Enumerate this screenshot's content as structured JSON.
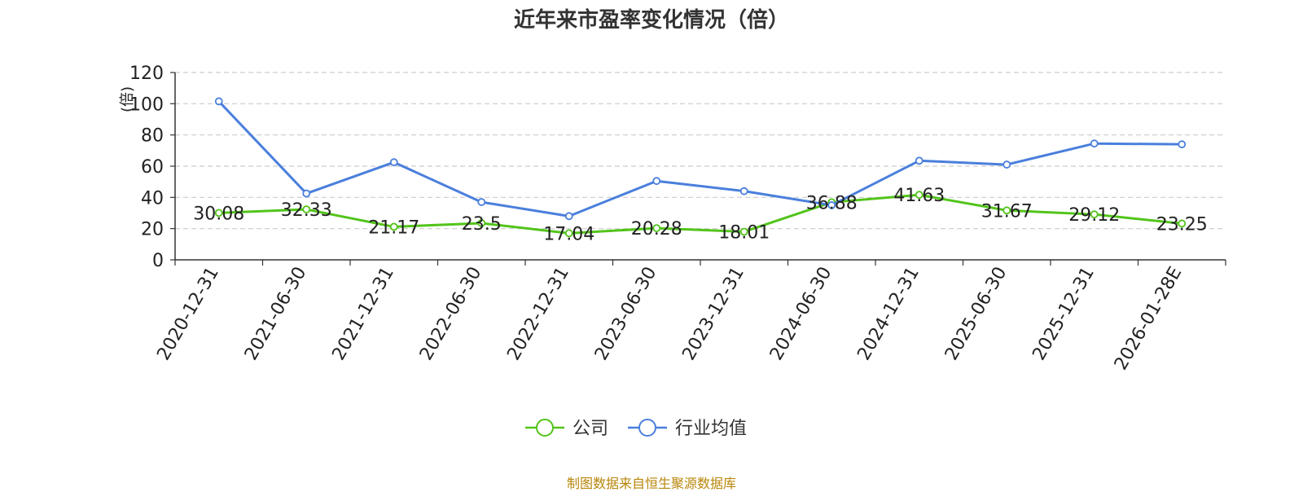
{
  "chart_data": {
    "type": "line",
    "title": "近年来市盈率变化情况（倍）",
    "ylabel": "(倍)",
    "xlabel": "",
    "ylim": [
      0,
      120
    ],
    "yticks": [
      0,
      20,
      40,
      60,
      80,
      100,
      120
    ],
    "grid": true,
    "legend_position": "bottom",
    "categories": [
      "2020-12-31",
      "2021-06-30",
      "2021-12-31",
      "2022-06-30",
      "2022-12-31",
      "2023-06-30",
      "2023-12-31",
      "2024-06-30",
      "2024-12-31",
      "2025-06-30",
      "2025-12-31",
      "2026-01-28E"
    ],
    "series": [
      {
        "name": "公司",
        "color": "#52c41a",
        "values": [
          30.08,
          32.33,
          21.17,
          23.5,
          17.04,
          20.28,
          18.01,
          36.88,
          41.63,
          31.67,
          29.12,
          23.25
        ],
        "labels": [
          "30.08",
          "32.33",
          "21.17",
          "23.5",
          "17.04",
          "20.28",
          "18.01",
          "36.88",
          "41.63",
          "31.67",
          "29.12",
          "23.25"
        ]
      },
      {
        "name": "行业均值",
        "color": "#4a7fdc",
        "values": [
          101.5,
          42.5,
          62.5,
          37.0,
          28.0,
          50.5,
          44.0,
          35.0,
          63.5,
          61.0,
          74.5,
          74.0
        ]
      }
    ]
  },
  "footer": {
    "source": "制图数据来自恒生聚源数据库"
  },
  "colors": {
    "ylabel": "#e03030",
    "source": "#b8860b"
  }
}
